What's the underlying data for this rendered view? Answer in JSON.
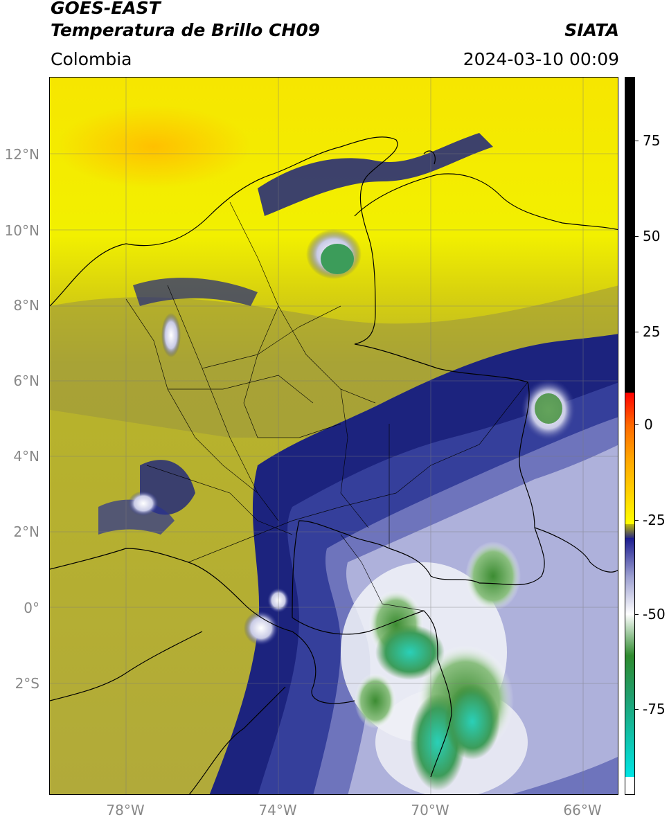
{
  "header": {
    "title_line1": "GOES-EAST",
    "title_line2": "Temperatura de Brillo CH09",
    "source": "SIATA",
    "region": "Colombia",
    "datetime": "2024-03-10 00:09"
  },
  "map": {
    "lat_labels": [
      "12°N",
      "10°N",
      "8°N",
      "6°N",
      "4°N",
      "2°N",
      "0°",
      "2°S"
    ],
    "lon_labels": [
      "78°W",
      "74°W",
      "70°W",
      "66°W"
    ],
    "colors": {
      "warm_yellow": "#f2f000",
      "olive": "#b8b32a",
      "dark_olive": "#8e8a3a",
      "navy": "#1c237e",
      "light_blue": "#a9acd8",
      "white": "#ffffff",
      "green": "#3c8c32",
      "teal": "#2ad0b8"
    }
  },
  "colorbar": {
    "labels": [
      "75",
      "50",
      "25",
      "0",
      "-25",
      "-50",
      "-75"
    ],
    "colors": [
      "#000000",
      "#ff0000",
      "#ffa500",
      "#ffff00",
      "#202080",
      "#ffffff",
      "#2e8b2e",
      "#00e5e5"
    ]
  }
}
